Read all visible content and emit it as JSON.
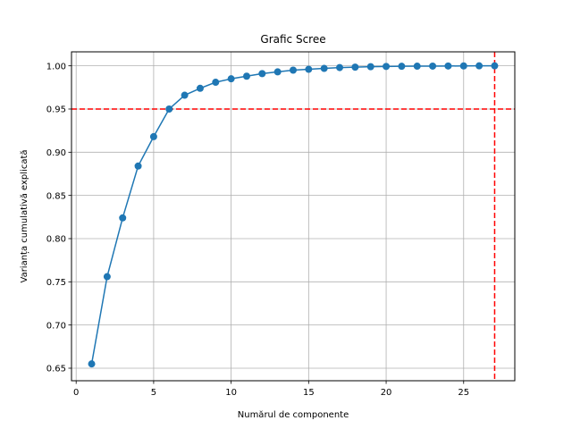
{
  "chart_data": {
    "type": "line",
    "title": "Grafic Scree",
    "xlabel": "Numărul de componente",
    "ylabel": "Varianța cumulativă explicată",
    "xlim": [
      -0.3,
      28.3
    ],
    "ylim": [
      0.6355,
      1.0162
    ],
    "xticks": [
      0,
      5,
      10,
      15,
      20,
      25
    ],
    "yticks": [
      0.65,
      0.7,
      0.75,
      0.8,
      0.85,
      0.9,
      0.95,
      1.0
    ],
    "grid": true,
    "colors": {
      "series": "#1f77b4",
      "reference": "#ff0000",
      "grid": "#b0b0b0"
    },
    "series": [
      {
        "marker": "circle",
        "x": [
          1,
          2,
          3,
          4,
          5,
          6,
          7,
          8,
          9,
          10,
          11,
          12,
          13,
          14,
          15,
          16,
          17,
          18,
          19,
          20,
          21,
          22,
          23,
          24,
          25,
          26,
          27
        ],
        "values": [
          0.655,
          0.756,
          0.824,
          0.884,
          0.918,
          0.95,
          0.966,
          0.974,
          0.981,
          0.985,
          0.988,
          0.991,
          0.993,
          0.995,
          0.996,
          0.997,
          0.998,
          0.9985,
          0.999,
          0.9993,
          0.9995,
          0.9996,
          0.9997,
          0.9998,
          0.9999,
          1.0,
          1.0
        ]
      }
    ],
    "reference_lines": [
      {
        "orientation": "horizontal",
        "value": 0.95,
        "style": "dashed"
      },
      {
        "orientation": "vertical",
        "value": 27,
        "style": "dashed"
      }
    ]
  }
}
